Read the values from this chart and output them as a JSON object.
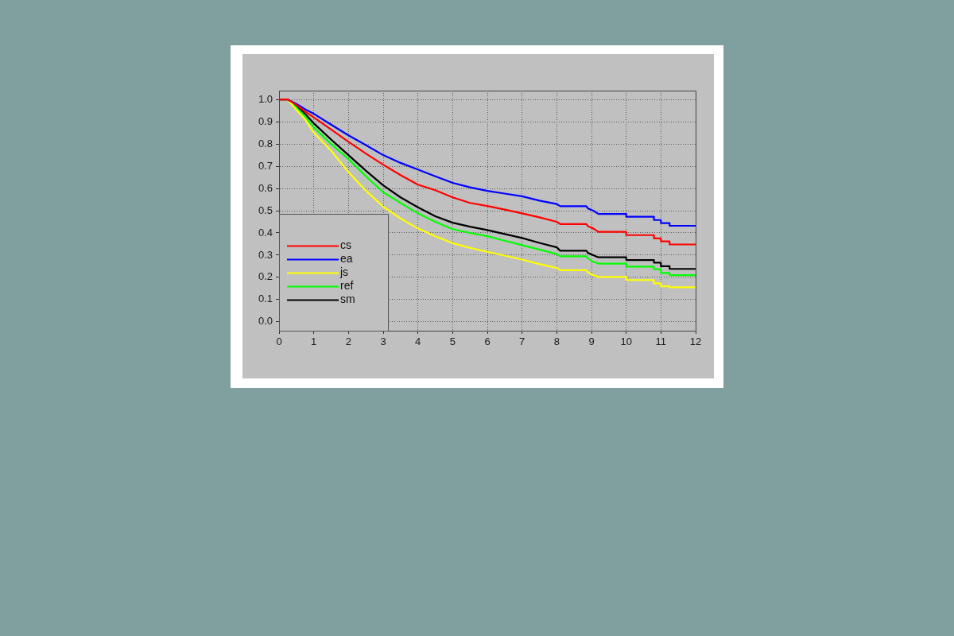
{
  "chart_data": {
    "type": "line",
    "xlim": [
      0,
      12
    ],
    "ylim": [
      -0.04,
      1.04
    ],
    "xticks": [
      0,
      1,
      2,
      3,
      4,
      5,
      6,
      7,
      8,
      9,
      10,
      11,
      12
    ],
    "yticks": [
      {
        "value": 0,
        "label": "0.0"
      },
      0.1,
      0.2,
      0.3,
      0.4,
      0.5,
      0.6,
      0.7,
      0.8,
      0.9,
      {
        "value": 1,
        "label": "1.0"
      }
    ],
    "grid": true,
    "legend": "bottom left",
    "marker": "none",
    "line_style": "solid",
    "x": [
      0,
      0.25,
      0.5,
      0.75,
      1,
      1.5,
      2,
      2.5,
      3,
      3.5,
      4,
      4.5,
      5,
      5.5,
      6,
      6.5,
      7,
      7.5,
      8,
      8.1,
      8.85,
      8.9,
      9.05,
      9.2,
      10,
      10,
      10.8,
      10.8,
      11,
      11,
      11.25,
      11.25,
      12
    ],
    "series": [
      {
        "name": "cs",
        "color": "#ff0000",
        "values": [
          1,
          1,
          0.976,
          0.946,
          0.92,
          0.865,
          0.81,
          0.757,
          0.707,
          0.66,
          0.617,
          0.592,
          0.56,
          0.535,
          0.521,
          0.505,
          0.488,
          0.47,
          0.45,
          0.44,
          0.44,
          0.43,
          0.42,
          0.405,
          0.405,
          0.39,
          0.39,
          0.375,
          0.375,
          0.362,
          0.362,
          0.348,
          0.348
        ]
      },
      {
        "name": "ea",
        "color": "#0000ff",
        "values": [
          1,
          1,
          0.98,
          0.956,
          0.936,
          0.887,
          0.839,
          0.795,
          0.75,
          0.715,
          0.685,
          0.655,
          0.625,
          0.605,
          0.589,
          0.577,
          0.565,
          0.545,
          0.53,
          0.52,
          0.52,
          0.51,
          0.5,
          0.485,
          0.485,
          0.473,
          0.473,
          0.458,
          0.458,
          0.444,
          0.444,
          0.432,
          0.432
        ]
      },
      {
        "name": "js",
        "color": "#ffff00",
        "values": [
          1,
          1,
          0.954,
          0.91,
          0.851,
          0.77,
          0.673,
          0.59,
          0.518,
          0.465,
          0.42,
          0.385,
          0.354,
          0.333,
          0.315,
          0.298,
          0.28,
          0.26,
          0.242,
          0.232,
          0.232,
          0.222,
          0.21,
          0.202,
          0.202,
          0.188,
          0.188,
          0.173,
          0.173,
          0.16,
          0.16,
          0.155,
          0.155
        ]
      },
      {
        "name": "ref",
        "color": "#00ff00",
        "values": [
          1,
          1,
          0.964,
          0.925,
          0.875,
          0.8,
          0.732,
          0.655,
          0.583,
          0.535,
          0.488,
          0.45,
          0.417,
          0.4,
          0.385,
          0.365,
          0.345,
          0.325,
          0.305,
          0.295,
          0.295,
          0.285,
          0.27,
          0.262,
          0.262,
          0.248,
          0.248,
          0.237,
          0.237,
          0.22,
          0.22,
          0.21,
          0.21
        ]
      },
      {
        "name": "sm",
        "color": "#000000",
        "values": [
          1,
          1,
          0.968,
          0.935,
          0.893,
          0.82,
          0.75,
          0.68,
          0.614,
          0.56,
          0.515,
          0.475,
          0.446,
          0.428,
          0.413,
          0.395,
          0.377,
          0.355,
          0.335,
          0.32,
          0.32,
          0.31,
          0.3,
          0.29,
          0.29,
          0.278,
          0.278,
          0.266,
          0.266,
          0.25,
          0.25,
          0.238,
          0.238
        ]
      }
    ]
  }
}
